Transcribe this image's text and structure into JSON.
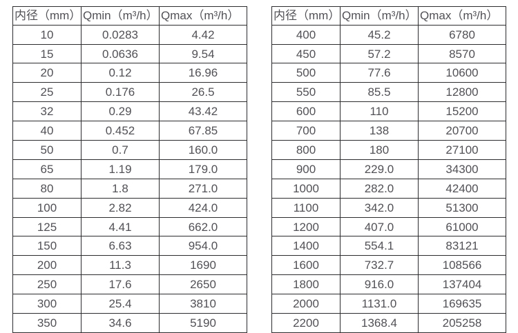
{
  "page": {
    "background_color": "#ffffff",
    "border_color": "#2b2b2e",
    "text_color": "#515156"
  },
  "chart_data": [
    {
      "type": "table",
      "title": "",
      "columns": [
        "内径（mm）",
        "Qmin（m³/h）",
        "Qmax（m³/h）"
      ],
      "rows": [
        [
          "10",
          "0.0283",
          "4.42"
        ],
        [
          "15",
          "0.0636",
          "9.54"
        ],
        [
          "20",
          "0.12",
          "16.96"
        ],
        [
          "25",
          "0.176",
          "26.5"
        ],
        [
          "32",
          "0.29",
          "43.42"
        ],
        [
          "40",
          "0.452",
          "67.85"
        ],
        [
          "50",
          "0.7",
          "160.0"
        ],
        [
          "65",
          "1.19",
          "179.0"
        ],
        [
          "80",
          "1.8",
          "271.0"
        ],
        [
          "100",
          "2.82",
          "424.0"
        ],
        [
          "125",
          "4.41",
          "662.0"
        ],
        [
          "150",
          "6.63",
          "954.0"
        ],
        [
          "200",
          "11.3",
          "1690"
        ],
        [
          "250",
          "17.6",
          "2650"
        ],
        [
          "300",
          "25.4",
          "3810"
        ],
        [
          "350",
          "34.6",
          "5190"
        ]
      ]
    },
    {
      "type": "table",
      "title": "",
      "columns": [
        "内径（mm）",
        "Qmin（m³/h）",
        "Qmax（m³/h）"
      ],
      "rows": [
        [
          "400",
          "45.2",
          "6780"
        ],
        [
          "450",
          "57.2",
          "8570"
        ],
        [
          "500",
          "77.6",
          "10600"
        ],
        [
          "550",
          "85.5",
          "12800"
        ],
        [
          "600",
          "110",
          "15200"
        ],
        [
          "700",
          "138",
          "20700"
        ],
        [
          "800",
          "180",
          "27100"
        ],
        [
          "900",
          "229.0",
          "34300"
        ],
        [
          "1000",
          "282.0",
          "42400"
        ],
        [
          "1100",
          "342.0",
          "51300"
        ],
        [
          "1200",
          "407.0",
          "61000"
        ],
        [
          "1400",
          "554.1",
          "83121"
        ],
        [
          "1600",
          "732.7",
          "108566"
        ],
        [
          "1800",
          "916.0",
          "137404"
        ],
        [
          "2000",
          "1131.0",
          "169635"
        ],
        [
          "2200",
          "1368.4",
          "205258"
        ]
      ]
    }
  ]
}
